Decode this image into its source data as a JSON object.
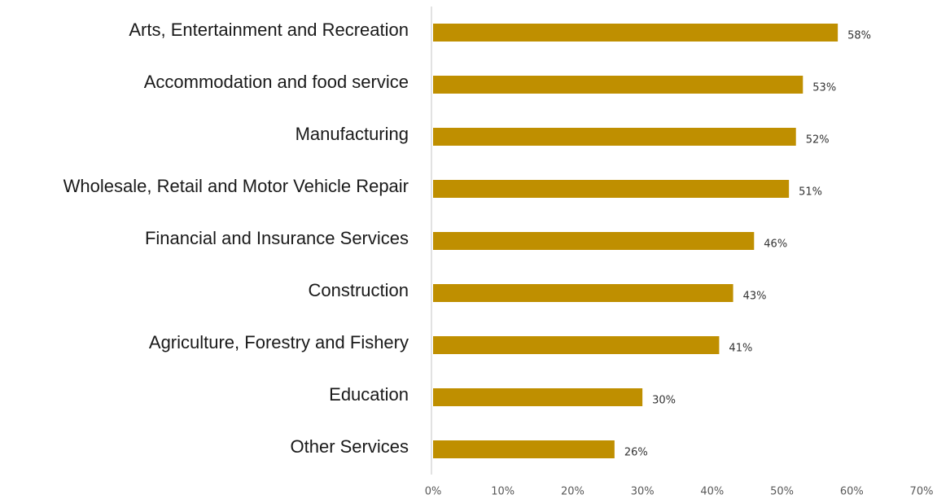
{
  "chart_data": {
    "type": "bar",
    "orientation": "horizontal",
    "title": "",
    "xlabel": "",
    "ylabel": "",
    "categories": [
      "Arts, Entertainment and Recreation",
      "Accommodation and food service",
      "Manufacturing",
      "Wholesale, Retail and Motor Vehicle Repair",
      "Financial and Insurance Services",
      "Construction",
      "Agriculture, Forestry and Fishery",
      "Education",
      "Other Services"
    ],
    "values": [
      58,
      53,
      52,
      51,
      46,
      43,
      41,
      30,
      26
    ],
    "value_labels": [
      "58%",
      "53%",
      "52%",
      "51%",
      "46%",
      "43%",
      "41%",
      "30%",
      "26%"
    ],
    "xlim": [
      0,
      70
    ],
    "x_ticks": [
      0,
      10,
      20,
      30,
      40,
      50,
      60,
      70
    ],
    "x_tick_labels": [
      "0%",
      "10%",
      "20%",
      "30%",
      "40%",
      "50%",
      "60%",
      "70%"
    ],
    "grid": false,
    "legend": "none",
    "colors": {
      "bar": "#BF8F00",
      "axis": "#D9D9D9"
    }
  }
}
